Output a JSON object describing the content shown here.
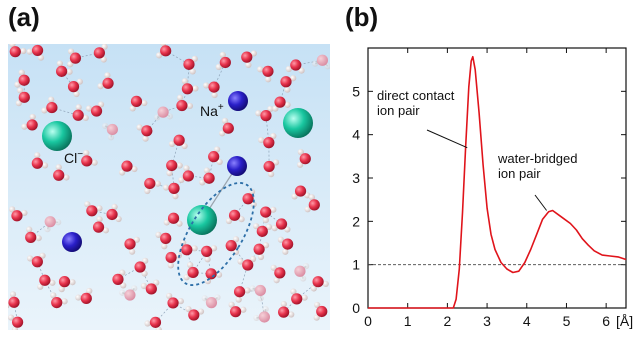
{
  "panels": {
    "a": "(a)",
    "b": "(b)"
  },
  "simulation": {
    "labels": {
      "na": "Na",
      "na_sup": "+",
      "cl": "Cl",
      "cl_sup": "−"
    },
    "colors": {
      "oxygen": "#e8344d",
      "hydrogen": "#f3f1f1",
      "sodium": "#2a1fc9",
      "chloride": "#19c7a0",
      "ellipse": "#2d6fa8"
    }
  },
  "chart_data": {
    "type": "line",
    "title": "",
    "xlabel": "[Å]",
    "ylabel": "",
    "xlim": [
      0,
      6.5
    ],
    "ylim": [
      0,
      6
    ],
    "xticks": [
      0,
      1,
      2,
      3,
      4,
      5,
      6
    ],
    "yticks": [
      0,
      1,
      2,
      3,
      4,
      5
    ],
    "reference_line": {
      "y": 1,
      "style": "dashed"
    },
    "series": [
      {
        "color": "#e0141b",
        "points": [
          [
            0,
            0
          ],
          [
            2.15,
            0
          ],
          [
            2.22,
            0.2
          ],
          [
            2.3,
            0.9
          ],
          [
            2.38,
            2.2
          ],
          [
            2.46,
            3.7
          ],
          [
            2.54,
            5.1
          ],
          [
            2.6,
            5.7
          ],
          [
            2.64,
            5.8
          ],
          [
            2.7,
            5.5
          ],
          [
            2.8,
            4.5
          ],
          [
            2.9,
            3.3
          ],
          [
            3.0,
            2.3
          ],
          [
            3.1,
            1.7
          ],
          [
            3.2,
            1.35
          ],
          [
            3.35,
            1.05
          ],
          [
            3.5,
            0.9
          ],
          [
            3.65,
            0.82
          ],
          [
            3.8,
            0.85
          ],
          [
            3.95,
            1.05
          ],
          [
            4.1,
            1.35
          ],
          [
            4.25,
            1.7
          ],
          [
            4.4,
            2.05
          ],
          [
            4.55,
            2.22
          ],
          [
            4.65,
            2.25
          ],
          [
            4.8,
            2.15
          ],
          [
            4.95,
            2.05
          ],
          [
            5.1,
            1.95
          ],
          [
            5.25,
            1.8
          ],
          [
            5.4,
            1.6
          ],
          [
            5.55,
            1.45
          ],
          [
            5.7,
            1.32
          ],
          [
            5.9,
            1.22
          ],
          [
            6.1,
            1.2
          ],
          [
            6.3,
            1.18
          ],
          [
            6.5,
            1.12
          ]
        ]
      }
    ],
    "annotations": [
      {
        "lines": [
          "direct contact",
          "ion pair"
        ]
      },
      {
        "lines": [
          "water-bridged",
          "ion pair"
        ]
      }
    ]
  }
}
